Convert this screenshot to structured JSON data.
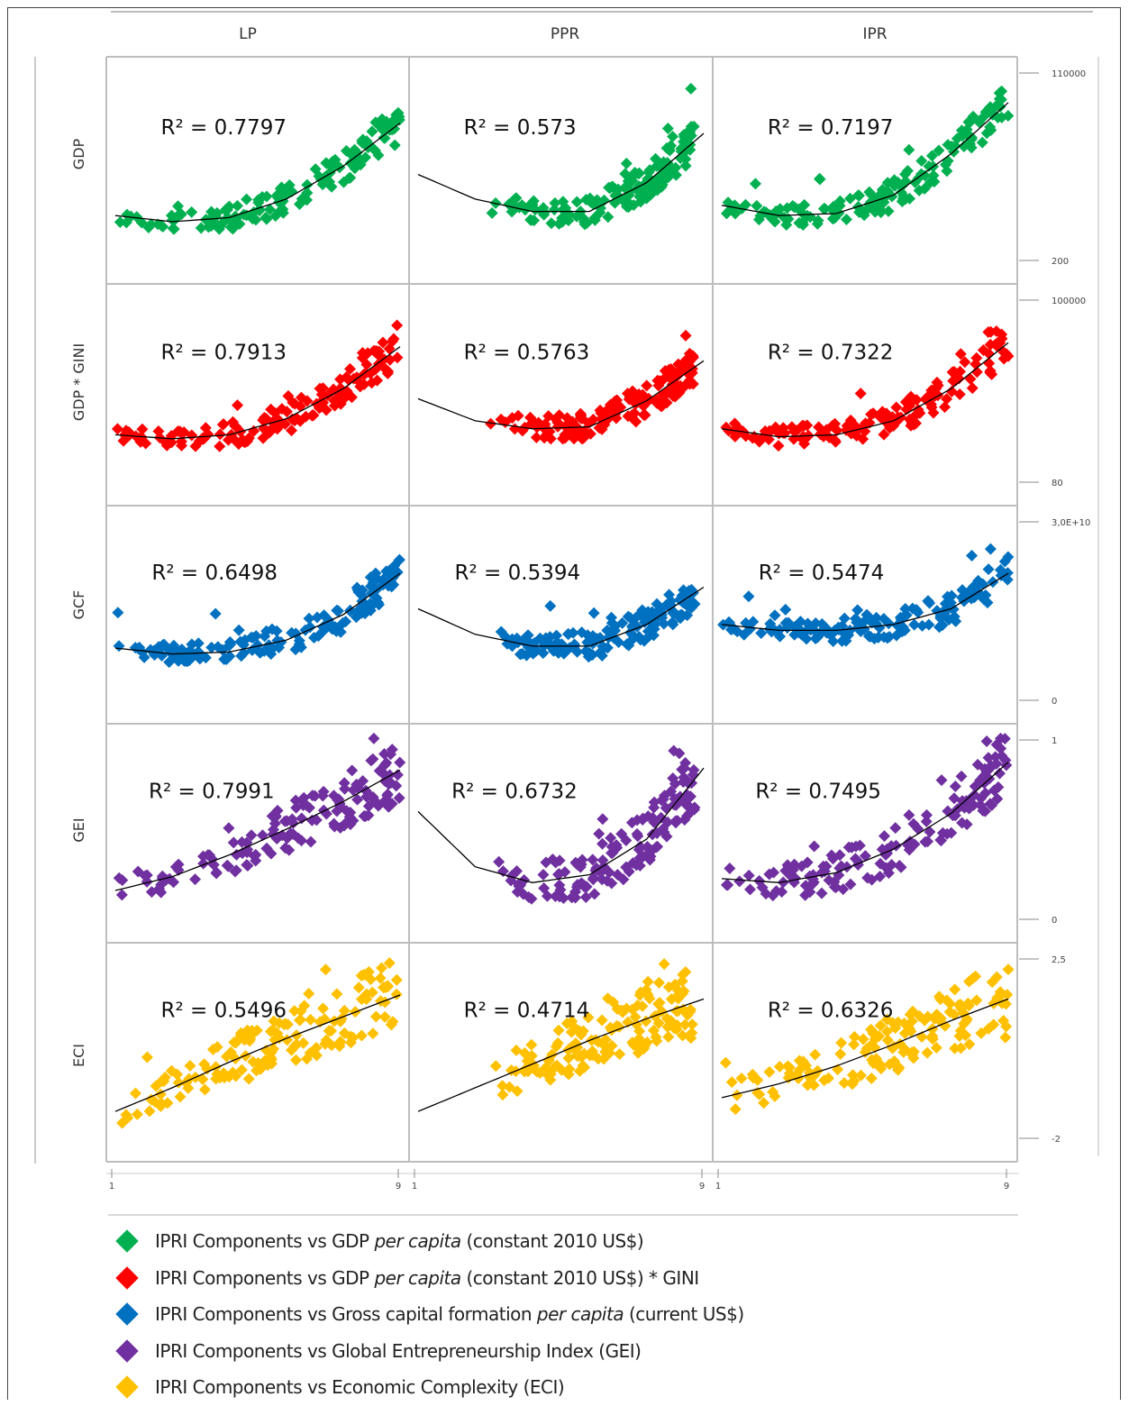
{
  "chart_data": {
    "type": "scatter",
    "subtype": "scatterplot-matrix-with-quadratic-trendlines",
    "columns": [
      "LP",
      "PPR",
      "IPR"
    ],
    "rows": [
      {
        "key": "GDP",
        "label": "GDP",
        "color": "#00b050",
        "axis_ticks": [
          "110000",
          "200"
        ],
        "legend": [
          "IPRI Components vs GDP ",
          "per capita",
          " (constant 2010  US$)"
        ]
      },
      {
        "key": "GDP_GINI",
        "label": "GDP * GINI",
        "color": "#ff0000",
        "axis_ticks": [
          "100000",
          "80"
        ],
        "legend": [
          "IPRI Components vs GDP ",
          "per capita",
          " (constant 2010  US$)  *  GINI"
        ]
      },
      {
        "key": "GCF",
        "label": "GCF",
        "color": "#0070c0",
        "axis_ticks": [
          "3,0E+10",
          "0"
        ],
        "legend": [
          "IPRI Components vs Gross capital formation ",
          "per capita",
          " (current US$)"
        ]
      },
      {
        "key": "GEI",
        "label": "GEI",
        "color": "#7030a0",
        "axis_ticks": [
          "1",
          "0"
        ],
        "legend": [
          "IPRI Components vs Global Entrepreneurship Index (GEI)",
          "",
          ""
        ]
      },
      {
        "key": "ECI",
        "label": "ECI",
        "color": "#ffc000",
        "axis_ticks": [
          "2,5",
          "-2"
        ],
        "legend": [
          "IPRI Components vs Economic Complexity (ECI)",
          "",
          ""
        ]
      }
    ],
    "x_axis_ticks": [
      "1",
      "9"
    ],
    "xlim": [
      1,
      9
    ],
    "legend_position": "bottom",
    "grid": false,
    "r_squared": [
      [
        "R² = 0.7797",
        "R² = 0.573",
        "R² = 0.7197"
      ],
      [
        "R² = 0.7913",
        "R² = 0.5763",
        "R² = 0.7322"
      ],
      [
        "R² = 0.6498",
        "R² = 0.5394",
        "R² = 0.5474"
      ],
      [
        "R² = 0.7991",
        "R² = 0.6732",
        "R² = 0.7495"
      ],
      [
        "R² = 0.5496",
        "R² = 0.4714",
        "R² = 0.6326"
      ]
    ],
    "note": "Axes are unlabeled except for the end ticks shown; point clouds estimated visually on a normalized 0-1 scale within each panel.",
    "trend_y_normalized": [
      [
        [
          0.28,
          0.25,
          0.27,
          0.36,
          0.52,
          0.73
        ],
        [
          0.48,
          0.36,
          0.3,
          0.3,
          0.44,
          0.68
        ],
        [
          0.33,
          0.28,
          0.29,
          0.38,
          0.58,
          0.83
        ]
      ],
      [
        [
          0.3,
          0.28,
          0.3,
          0.38,
          0.53,
          0.74
        ],
        [
          0.48,
          0.37,
          0.33,
          0.34,
          0.47,
          0.67
        ],
        [
          0.33,
          0.29,
          0.3,
          0.37,
          0.53,
          0.76
        ]
      ],
      [
        [
          0.33,
          0.3,
          0.31,
          0.37,
          0.5,
          0.71
        ],
        [
          0.53,
          0.4,
          0.34,
          0.34,
          0.45,
          0.64
        ],
        [
          0.45,
          0.42,
          0.42,
          0.45,
          0.53,
          0.71
        ]
      ],
      [
        [
          0.21,
          0.28,
          0.39,
          0.52,
          0.66,
          0.82
        ],
        [
          0.61,
          0.33,
          0.25,
          0.29,
          0.47,
          0.83
        ],
        [
          0.27,
          0.25,
          0.3,
          0.42,
          0.6,
          0.86
        ]
      ],
      [
        [
          0.2,
          0.32,
          0.45,
          0.57,
          0.68,
          0.79
        ],
        [
          0.2,
          0.32,
          0.44,
          0.56,
          0.67,
          0.77
        ],
        [
          0.27,
          0.34,
          0.43,
          0.54,
          0.66,
          0.77
        ]
      ]
    ]
  }
}
